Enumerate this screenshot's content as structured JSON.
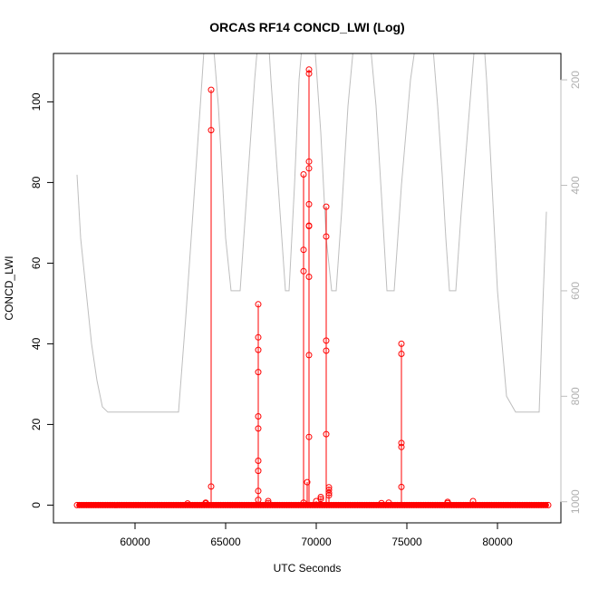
{
  "chart_data": {
    "type": "line",
    "title": "ORCAS RF14 CONCD_LWI (Log)",
    "xlabel": "UTC Seconds",
    "ylabel": "CONCD_LWI",
    "xlim": [
      55500,
      83500
    ],
    "ylim": [
      -4.4,
      112
    ],
    "x_ticks": [
      60000,
      65000,
      70000,
      75000,
      80000
    ],
    "y_ticks": [
      0,
      20,
      40,
      60,
      80,
      100
    ],
    "y2_ticks": [
      200,
      400,
      600,
      800,
      1000
    ],
    "y2_range_top_to_bottom": [
      150,
      1040
    ],
    "grid": false,
    "legend": "none",
    "colors": {
      "data": "#ff0000",
      "secondary": "#bebebe",
      "axis": "#000000"
    },
    "series": [
      {
        "axis": "left",
        "style": "line+markers",
        "baseline_x_range": [
          56800,
          82800
        ],
        "baseline_value": 0,
        "spikes": [
          {
            "x": 62900,
            "values": [
              0.4
            ]
          },
          {
            "x": 63900,
            "values": [
              0.6,
              0.4
            ]
          },
          {
            "x": 64200,
            "values": [
              103,
              93,
              4.6
            ]
          },
          {
            "x": 66800,
            "values": [
              49.8,
              41.6,
              38.5,
              33,
              22,
              19,
              11,
              8.5,
              3.5,
              1.3
            ]
          },
          {
            "x": 67350,
            "values": [
              1.0,
              0.5
            ]
          },
          {
            "x": 69300,
            "values": [
              82,
              63.3,
              58,
              0.6
            ]
          },
          {
            "x": 69500,
            "values": [
              5.7
            ]
          },
          {
            "x": 69600,
            "values": [
              108,
              107,
              85.2,
              83.5,
              74.6,
              69.3,
              69.2,
              56.6,
              37.2,
              16.9
            ]
          },
          {
            "x": 70000,
            "values": [
              1.0
            ]
          },
          {
            "x": 70250,
            "values": [
              1.5,
              2.0
            ]
          },
          {
            "x": 70550,
            "values": [
              74,
              66.6,
              40.8,
              38.3,
              17.6
            ]
          },
          {
            "x": 70700,
            "values": [
              4.4,
              3.8,
              3.0,
              2.4
            ]
          },
          {
            "x": 73600,
            "values": [
              0.5
            ]
          },
          {
            "x": 74000,
            "values": [
              0.6
            ]
          },
          {
            "x": 74700,
            "values": [
              40,
              37.5,
              15.4,
              14.4,
              4.5
            ]
          },
          {
            "x": 77250,
            "values": [
              0.8,
              0.5
            ]
          },
          {
            "x": 78650,
            "values": [
              1.0
            ]
          }
        ]
      },
      {
        "axis": "right",
        "style": "line",
        "x": [
          56800,
          57000,
          57300,
          57600,
          57900,
          58200,
          58500,
          59000,
          60000,
          61000,
          62000,
          62400,
          62800,
          63200,
          63600,
          63850,
          64050,
          64250,
          64600,
          65000,
          65300,
          65500,
          65800,
          66000,
          66300,
          66600,
          66900,
          67200,
          67500,
          67900,
          68300,
          68500,
          68800,
          69050,
          69300,
          69500,
          69700,
          69950,
          70250,
          70550,
          70850,
          71100,
          71400,
          71750,
          72100,
          72500,
          72900,
          73300,
          73600,
          73900,
          74100,
          74300,
          74700,
          75200,
          75700,
          76100,
          76400,
          76700,
          76950,
          77150,
          77350,
          77700,
          78000,
          78350,
          78700,
          79000,
          79200,
          79400,
          79700,
          80000,
          80500,
          81000,
          81500,
          82000,
          82300,
          82500,
          82700
        ],
        "values": [
          380,
          500,
          600,
          700,
          770,
          820,
          830,
          830,
          830,
          830,
          830,
          830,
          650,
          450,
          250,
          120,
          80,
          100,
          250,
          500,
          600,
          600,
          600,
          500,
          350,
          200,
          80,
          30,
          200,
          400,
          600,
          600,
          400,
          200,
          100,
          60,
          80,
          150,
          300,
          500,
          600,
          600,
          450,
          250,
          120,
          80,
          100,
          250,
          420,
          600,
          600,
          600,
          400,
          200,
          80,
          50,
          120,
          250,
          380,
          500,
          600,
          600,
          450,
          300,
          150,
          90,
          100,
          200,
          400,
          600,
          800,
          830,
          830,
          830,
          830,
          630,
          450
        ]
      }
    ]
  }
}
